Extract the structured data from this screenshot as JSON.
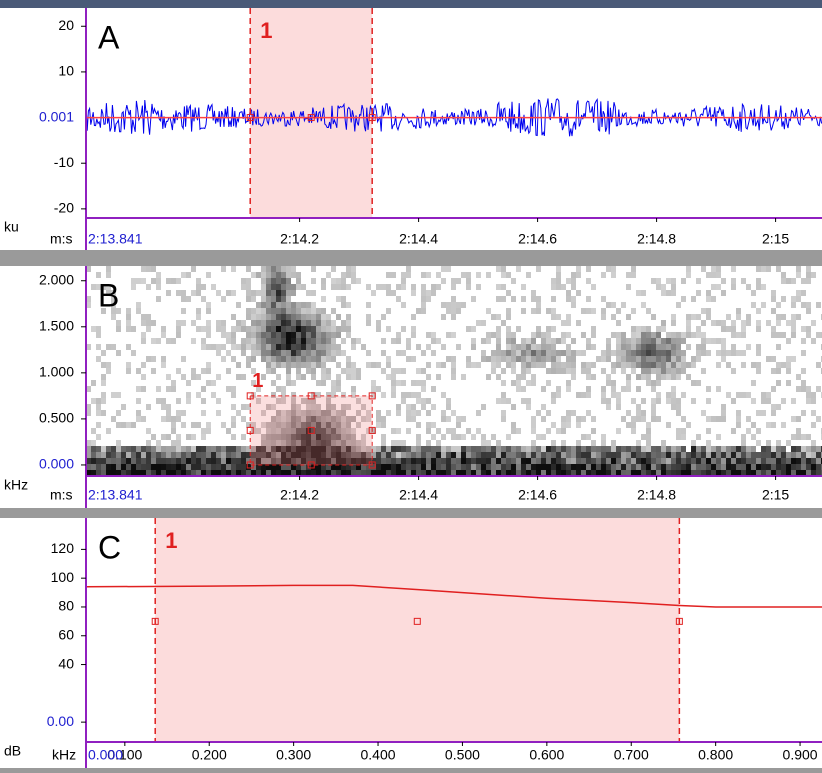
{
  "panels": [
    {
      "letter": "A",
      "y_unit": "ku",
      "x_unit": "m:s",
      "y_readout": "0.001",
      "x_readout": "2:13.841",
      "ylim": [
        -22,
        24
      ],
      "yticks": [
        20,
        10,
        -10,
        -20
      ],
      "xlim": [
        133.841,
        135.078
      ],
      "xticks": [
        {
          "value": 134.2,
          "label": "2:14.2"
        },
        {
          "value": 134.4,
          "label": "2:14.4"
        },
        {
          "value": 134.6,
          "label": "2:14.6"
        },
        {
          "value": 134.8,
          "label": "2:14.8"
        },
        {
          "value": 135,
          "label": "2:15"
        }
      ],
      "selection": {
        "label": "1",
        "x": [
          134.117,
          134.322
        ]
      }
    },
    {
      "letter": "B",
      "y_unit": "kHz",
      "x_unit": "m:s",
      "x_readout": "2:13.841",
      "ylim": [
        -0.12,
        2.16
      ],
      "yticks": [
        {
          "value": 2,
          "label": "2.000"
        },
        {
          "value": 1.5,
          "label": "1.500"
        },
        {
          "value": 1,
          "label": "1.000"
        },
        {
          "value": 0.5,
          "label": "0.500"
        },
        {
          "value": 0,
          "label": "0.000"
        }
      ],
      "xlim": [
        133.841,
        135.078
      ],
      "xticks": [
        {
          "value": 134.2,
          "label": "2:14.2"
        },
        {
          "value": 134.4,
          "label": "2:14.4"
        },
        {
          "value": 134.6,
          "label": "2:14.6"
        },
        {
          "value": 134.8,
          "label": "2:14.8"
        },
        {
          "value": 135,
          "label": "2:15"
        }
      ],
      "selection": {
        "label": "1",
        "x": [
          134.117,
          134.322
        ],
        "y": [
          0,
          0.75
        ]
      }
    },
    {
      "letter": "C",
      "y_unit": "dB",
      "x_unit": "kHz",
      "x_readout": "0.000",
      "ylim": [
        -13.8,
        141.8
      ],
      "yticks": [
        120,
        100,
        80,
        60,
        40,
        {
          "value": 0,
          "label": "0.00"
        }
      ],
      "xlim": [
        0.054,
        0.926
      ],
      "xticks": [
        {
          "value": 0.1,
          "label": "0.100"
        },
        {
          "value": 0.2,
          "label": "0.200"
        },
        {
          "value": 0.3,
          "label": "0.300"
        },
        {
          "value": 0.4,
          "label": "0.400"
        },
        {
          "value": 0.5,
          "label": "0.500"
        },
        {
          "value": 0.6,
          "label": "0.600"
        },
        {
          "value": 0.7,
          "label": "0.700"
        },
        {
          "value": 0.8,
          "label": "0.800"
        },
        {
          "value": 0.9,
          "label": "0.900"
        }
      ],
      "selection": {
        "label": "1",
        "x": [
          0.136,
          0.757
        ]
      },
      "spectrum": {
        "x": [
          0.054,
          0.2,
          0.3,
          0.37,
          0.45,
          0.5,
          0.6,
          0.7,
          0.757,
          0.8,
          0.926
        ],
        "values": [
          94,
          94.5,
          95,
          95,
          92,
          90,
          86,
          83,
          81,
          80,
          80
        ]
      }
    }
  ]
}
